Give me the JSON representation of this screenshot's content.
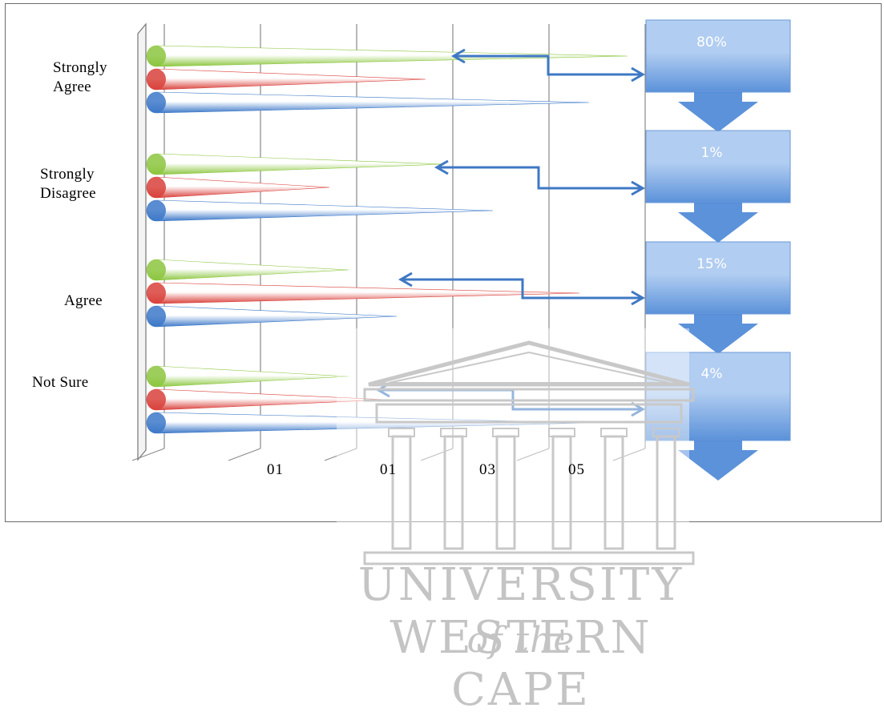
{
  "chart_data": {
    "type": "bar",
    "categories": [
      "Strongly Agree",
      "Strongly Disagree",
      "Agree",
      "Not Sure"
    ],
    "series": [
      {
        "color": "#8cc63f",
        "values": [
          49,
          30,
          20,
          20
        ]
      },
      {
        "color": "#d9413b",
        "values": [
          28,
          18,
          44,
          24
        ]
      },
      {
        "color": "#3c78c8",
        "values": [
          45,
          35,
          25,
          45
        ]
      }
    ],
    "x_tick_labels": [
      "01",
      "01",
      "03",
      "05"
    ],
    "percent_boxes": [
      "80%",
      "1%",
      "15%",
      "4%"
    ],
    "grid": true
  },
  "watermark": {
    "line1": "UNIVERSITY",
    "line1_italic": "of the",
    "line2": "WESTERN CAPE"
  },
  "colors": {
    "box_top": "#a9c8f0",
    "box_bottom": "#4a86d6",
    "connector": "#3f78c4"
  }
}
